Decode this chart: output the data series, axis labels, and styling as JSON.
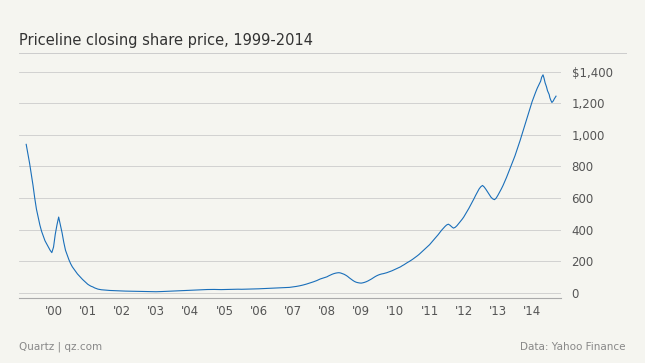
{
  "title": "Priceline closing share price, 1999-2014",
  "line_color": "#1a6fba",
  "background_color": "#f5f5f0",
  "grid_color": "#cccccc",
  "title_separator_color": "#cccccc",
  "yticks": [
    0,
    200,
    400,
    600,
    800,
    1000,
    1200,
    1400
  ],
  "xtick_labels": [
    "'00",
    "'01",
    "'02",
    "'03",
    "'04",
    "'05",
    "'06",
    "'07",
    "'08",
    "'09",
    "'10",
    "'11",
    "'12",
    "'13",
    "'14"
  ],
  "footer_left": "Quartz | qz.com",
  "footer_right": "Data: Yahoo Finance",
  "ylim": [
    -30,
    1440
  ],
  "line_width": 0.8,
  "stock_data": [
    [
      1999.2,
      940
    ],
    [
      1999.25,
      880
    ],
    [
      1999.3,
      820
    ],
    [
      1999.35,
      750
    ],
    [
      1999.4,
      680
    ],
    [
      1999.45,
      600
    ],
    [
      1999.5,
      530
    ],
    [
      1999.55,
      480
    ],
    [
      1999.6,
      430
    ],
    [
      1999.65,
      390
    ],
    [
      1999.7,
      360
    ],
    [
      1999.75,
      330
    ],
    [
      1999.8,
      310
    ],
    [
      1999.85,
      290
    ],
    [
      1999.9,
      270
    ],
    [
      1999.95,
      255
    ],
    [
      2000.0,
      290
    ],
    [
      2000.05,
      370
    ],
    [
      2000.1,
      430
    ],
    [
      2000.15,
      480
    ],
    [
      2000.2,
      430
    ],
    [
      2000.25,
      380
    ],
    [
      2000.3,
      320
    ],
    [
      2000.35,
      270
    ],
    [
      2000.4,
      240
    ],
    [
      2000.45,
      210
    ],
    [
      2000.5,
      185
    ],
    [
      2000.55,
      165
    ],
    [
      2000.6,
      150
    ],
    [
      2000.65,
      135
    ],
    [
      2000.7,
      120
    ],
    [
      2000.75,
      108
    ],
    [
      2000.8,
      95
    ],
    [
      2000.85,
      85
    ],
    [
      2000.9,
      75
    ],
    [
      2000.95,
      65
    ],
    [
      2001.0,
      55
    ],
    [
      2001.05,
      48
    ],
    [
      2001.1,
      42
    ],
    [
      2001.15,
      38
    ],
    [
      2001.2,
      32
    ],
    [
      2001.25,
      28
    ],
    [
      2001.3,
      24
    ],
    [
      2001.35,
      22
    ],
    [
      2001.4,
      20
    ],
    [
      2001.45,
      19
    ],
    [
      2001.5,
      18
    ],
    [
      2001.55,
      17
    ],
    [
      2001.6,
      16
    ],
    [
      2001.65,
      15.5
    ],
    [
      2001.7,
      15
    ],
    [
      2001.75,
      14.5
    ],
    [
      2001.8,
      14
    ],
    [
      2001.85,
      13.5
    ],
    [
      2001.9,
      13
    ],
    [
      2001.95,
      12.5
    ],
    [
      2002.0,
      12
    ],
    [
      2002.1,
      11.5
    ],
    [
      2002.2,
      11
    ],
    [
      2002.3,
      10.5
    ],
    [
      2002.4,
      10
    ],
    [
      2002.5,
      9.5
    ],
    [
      2002.6,
      9
    ],
    [
      2002.7,
      8.5
    ],
    [
      2002.8,
      8
    ],
    [
      2002.9,
      7.5
    ],
    [
      2003.0,
      7.5
    ],
    [
      2003.1,
      8
    ],
    [
      2003.2,
      9
    ],
    [
      2003.3,
      10
    ],
    [
      2003.4,
      11
    ],
    [
      2003.5,
      12
    ],
    [
      2003.6,
      13
    ],
    [
      2003.7,
      14
    ],
    [
      2003.8,
      15
    ],
    [
      2003.9,
      16
    ],
    [
      2004.0,
      17
    ],
    [
      2004.1,
      18
    ],
    [
      2004.2,
      19
    ],
    [
      2004.3,
      20
    ],
    [
      2004.4,
      21
    ],
    [
      2004.5,
      21.5
    ],
    [
      2004.6,
      22
    ],
    [
      2004.7,
      22
    ],
    [
      2004.8,
      21.5
    ],
    [
      2004.9,
      21
    ],
    [
      2005.0,
      21.5
    ],
    [
      2005.1,
      22
    ],
    [
      2005.2,
      22.5
    ],
    [
      2005.3,
      23
    ],
    [
      2005.4,
      23.5
    ],
    [
      2005.5,
      23
    ],
    [
      2005.6,
      23.5
    ],
    [
      2005.7,
      24
    ],
    [
      2005.8,
      24.5
    ],
    [
      2005.9,
      25
    ],
    [
      2006.0,
      26
    ],
    [
      2006.1,
      27
    ],
    [
      2006.2,
      28
    ],
    [
      2006.3,
      29
    ],
    [
      2006.4,
      30
    ],
    [
      2006.5,
      31
    ],
    [
      2006.6,
      32
    ],
    [
      2006.7,
      33
    ],
    [
      2006.8,
      34
    ],
    [
      2006.9,
      35
    ],
    [
      2007.0,
      38
    ],
    [
      2007.1,
      41
    ],
    [
      2007.2,
      45
    ],
    [
      2007.3,
      50
    ],
    [
      2007.4,
      56
    ],
    [
      2007.5,
      63
    ],
    [
      2007.6,
      70
    ],
    [
      2007.7,
      78
    ],
    [
      2007.8,
      88
    ],
    [
      2007.9,
      95
    ],
    [
      2008.0,
      102
    ],
    [
      2008.05,
      108
    ],
    [
      2008.1,
      113
    ],
    [
      2008.15,
      118
    ],
    [
      2008.2,
      122
    ],
    [
      2008.25,
      125
    ],
    [
      2008.3,
      127
    ],
    [
      2008.35,
      128
    ],
    [
      2008.4,
      126
    ],
    [
      2008.45,
      122
    ],
    [
      2008.5,
      118
    ],
    [
      2008.55,
      112
    ],
    [
      2008.6,
      105
    ],
    [
      2008.65,
      96
    ],
    [
      2008.7,
      88
    ],
    [
      2008.75,
      80
    ],
    [
      2008.8,
      73
    ],
    [
      2008.85,
      68
    ],
    [
      2008.9,
      65
    ],
    [
      2008.95,
      63
    ],
    [
      2009.0,
      62
    ],
    [
      2009.05,
      64
    ],
    [
      2009.1,
      67
    ],
    [
      2009.15,
      71
    ],
    [
      2009.2,
      76
    ],
    [
      2009.25,
      82
    ],
    [
      2009.3,
      88
    ],
    [
      2009.35,
      95
    ],
    [
      2009.4,
      102
    ],
    [
      2009.45,
      108
    ],
    [
      2009.5,
      113
    ],
    [
      2009.55,
      117
    ],
    [
      2009.6,
      120
    ],
    [
      2009.65,
      122
    ],
    [
      2009.7,
      125
    ],
    [
      2009.75,
      128
    ],
    [
      2009.8,
      132
    ],
    [
      2009.85,
      136
    ],
    [
      2009.9,
      140
    ],
    [
      2009.95,
      145
    ],
    [
      2010.0,
      150
    ],
    [
      2010.05,
      155
    ],
    [
      2010.1,
      160
    ],
    [
      2010.15,
      165
    ],
    [
      2010.2,
      172
    ],
    [
      2010.25,
      178
    ],
    [
      2010.3,
      185
    ],
    [
      2010.35,
      192
    ],
    [
      2010.4,
      198
    ],
    [
      2010.45,
      205
    ],
    [
      2010.5,
      212
    ],
    [
      2010.55,
      220
    ],
    [
      2010.6,
      228
    ],
    [
      2010.65,
      236
    ],
    [
      2010.7,
      245
    ],
    [
      2010.75,
      255
    ],
    [
      2010.8,
      265
    ],
    [
      2010.85,
      275
    ],
    [
      2010.9,
      285
    ],
    [
      2010.95,
      295
    ],
    [
      2011.0,
      305
    ],
    [
      2011.05,
      318
    ],
    [
      2011.1,
      330
    ],
    [
      2011.15,
      343
    ],
    [
      2011.2,
      355
    ],
    [
      2011.25,
      368
    ],
    [
      2011.3,
      382
    ],
    [
      2011.35,
      396
    ],
    [
      2011.4,
      408
    ],
    [
      2011.45,
      420
    ],
    [
      2011.5,
      430
    ],
    [
      2011.55,
      435
    ],
    [
      2011.6,
      428
    ],
    [
      2011.65,
      418
    ],
    [
      2011.7,
      410
    ],
    [
      2011.75,
      415
    ],
    [
      2011.8,
      425
    ],
    [
      2011.85,
      438
    ],
    [
      2011.9,
      450
    ],
    [
      2011.95,
      465
    ],
    [
      2012.0,
      480
    ],
    [
      2012.05,
      498
    ],
    [
      2012.1,
      516
    ],
    [
      2012.15,
      535
    ],
    [
      2012.2,
      555
    ],
    [
      2012.25,
      575
    ],
    [
      2012.3,
      596
    ],
    [
      2012.35,
      618
    ],
    [
      2012.4,
      638
    ],
    [
      2012.45,
      658
    ],
    [
      2012.5,
      672
    ],
    [
      2012.55,
      680
    ],
    [
      2012.6,
      670
    ],
    [
      2012.65,
      655
    ],
    [
      2012.7,
      638
    ],
    [
      2012.75,
      620
    ],
    [
      2012.8,
      605
    ],
    [
      2012.85,
      595
    ],
    [
      2012.9,
      590
    ],
    [
      2012.95,
      600
    ],
    [
      2013.0,
      618
    ],
    [
      2013.05,
      638
    ],
    [
      2013.1,
      658
    ],
    [
      2013.15,
      680
    ],
    [
      2013.2,
      705
    ],
    [
      2013.25,
      730
    ],
    [
      2013.3,
      758
    ],
    [
      2013.35,
      785
    ],
    [
      2013.4,
      812
    ],
    [
      2013.45,
      840
    ],
    [
      2013.5,
      868
    ],
    [
      2013.55,
      900
    ],
    [
      2013.6,
      932
    ],
    [
      2013.65,
      965
    ],
    [
      2013.7,
      1000
    ],
    [
      2013.75,
      1035
    ],
    [
      2013.8,
      1070
    ],
    [
      2013.85,
      1105
    ],
    [
      2013.9,
      1140
    ],
    [
      2013.95,
      1175
    ],
    [
      2014.0,
      1210
    ],
    [
      2014.05,
      1240
    ],
    [
      2014.1,
      1268
    ],
    [
      2014.15,
      1295
    ],
    [
      2014.2,
      1318
    ],
    [
      2014.25,
      1340
    ],
    [
      2014.28,
      1365
    ],
    [
      2014.32,
      1380
    ],
    [
      2014.35,
      1358
    ],
    [
      2014.38,
      1330
    ],
    [
      2014.42,
      1305
    ],
    [
      2014.45,
      1280
    ],
    [
      2014.5,
      1255
    ],
    [
      2014.52,
      1235
    ],
    [
      2014.55,
      1218
    ],
    [
      2014.58,
      1205
    ],
    [
      2014.62,
      1215
    ],
    [
      2014.65,
      1228
    ],
    [
      2014.68,
      1238
    ],
    [
      2014.7,
      1245
    ]
  ]
}
